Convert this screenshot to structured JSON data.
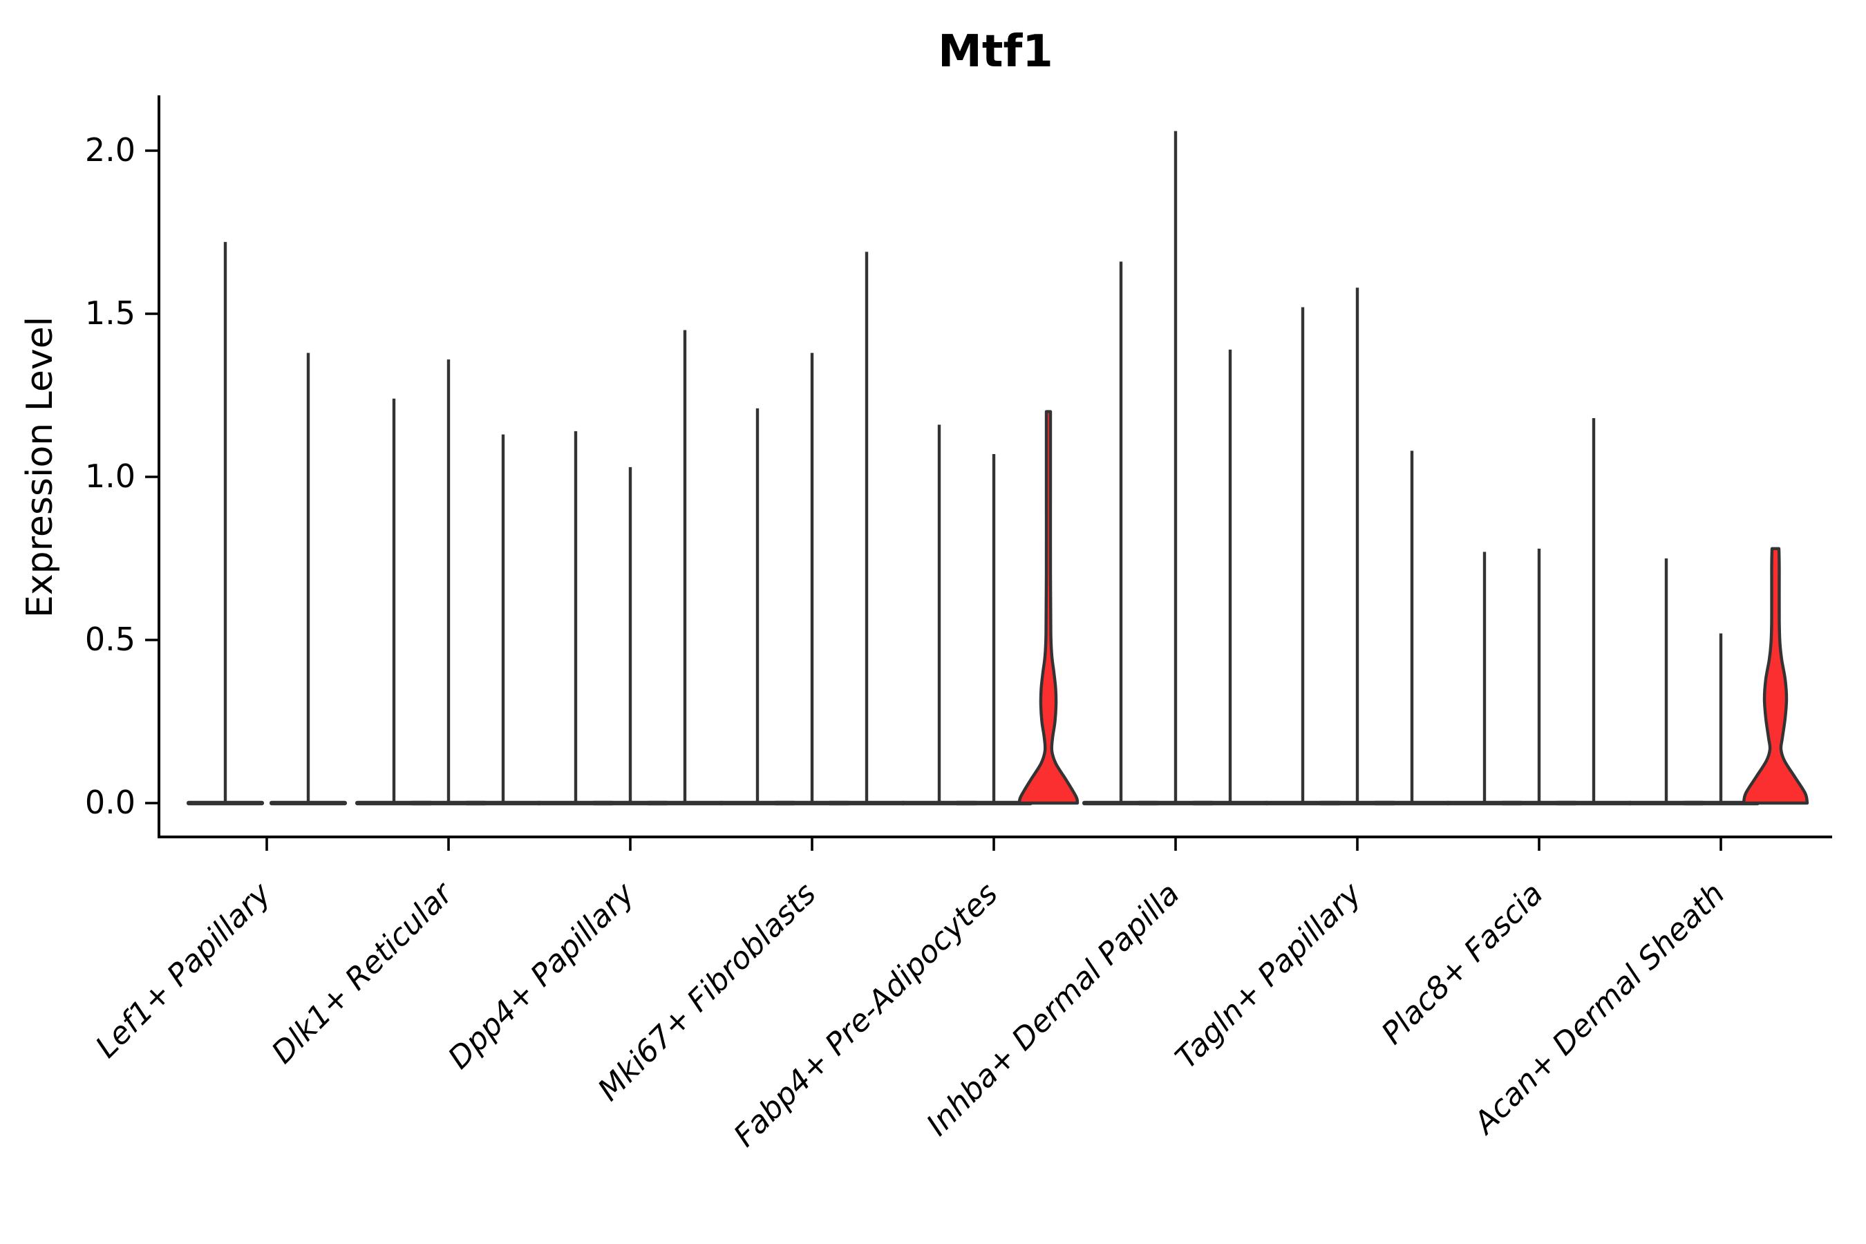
{
  "chart_data": {
    "type": "violin",
    "title": "Mtf1",
    "ylabel": "Expression Level",
    "xlabel": "",
    "ylim": [
      -0.05,
      2.16
    ],
    "yticks": [
      0.0,
      0.5,
      1.0,
      1.5,
      2.0
    ],
    "ytick_labels": [
      "0.0",
      "0.5",
      "1.0",
      "1.5",
      "2.0"
    ],
    "grid": false,
    "legend": "none",
    "colors": {
      "violin_line": "#333333",
      "highlight_fill": "#FB2F2F",
      "axis": "#000000",
      "text": "#000000"
    },
    "note": "27 violins in 9 groups of 3 (first group shows 2); most collapse to a baseline blob with a thin tail spike; two red filled violins (3rd of Fabp4+ Pre-Adipocytes, 3rd of Acan+ Dermal Sheath)",
    "groups": [
      {
        "label": "Lef1+ Papillary",
        "violins": [
          {
            "style": "spike",
            "max": 1.72
          },
          {
            "style": "spike",
            "max": 1.38
          }
        ]
      },
      {
        "label": "Dlk1+ Reticular",
        "violins": [
          {
            "style": "spike",
            "max": 1.24
          },
          {
            "style": "spike",
            "max": 1.36
          },
          {
            "style": "spike",
            "max": 1.13
          }
        ]
      },
      {
        "label": "Dpp4+ Papillary",
        "violins": [
          {
            "style": "spike",
            "max": 1.14
          },
          {
            "style": "spike",
            "max": 1.03
          },
          {
            "style": "spike",
            "max": 1.45
          }
        ]
      },
      {
        "label": "Mki67+ Fibroblasts",
        "violins": [
          {
            "style": "spike",
            "max": 1.21
          },
          {
            "style": "spike",
            "max": 1.38
          },
          {
            "style": "spike",
            "max": 1.69
          }
        ]
      },
      {
        "label": "Fabp4+ Pre-Adipocytes",
        "violins": [
          {
            "style": "spike",
            "max": 1.16
          },
          {
            "style": "spike",
            "max": 1.07
          },
          {
            "style": "filled",
            "max": 1.2,
            "bulge_center": 0.33,
            "profile": [
              [
                0,
                42
              ],
              [
                0.02,
                40
              ],
              [
                0.07,
                26
              ],
              [
                0.12,
                11
              ],
              [
                0.16,
                5
              ],
              [
                0.2,
                6
              ],
              [
                0.25,
                9.5
              ],
              [
                0.3,
                11
              ],
              [
                0.35,
                10.5
              ],
              [
                0.4,
                8
              ],
              [
                0.45,
                5
              ],
              [
                0.52,
                3.5
              ],
              [
                0.7,
                3
              ],
              [
                1.0,
                3
              ],
              [
                1.2,
                3
              ]
            ]
          }
        ]
      },
      {
        "label": "Inhba+ Dermal Papilla",
        "violins": [
          {
            "style": "spike",
            "max": 1.66
          },
          {
            "style": "spike",
            "max": 2.06
          },
          {
            "style": "spike",
            "max": 1.39
          }
        ]
      },
      {
        "label": "Tagln+ Papillary",
        "violins": [
          {
            "style": "spike",
            "max": 1.52
          },
          {
            "style": "spike",
            "max": 1.58
          },
          {
            "style": "spike",
            "max": 1.08
          }
        ]
      },
      {
        "label": "Plac8+ Fascia",
        "violins": [
          {
            "style": "spike",
            "max": 0.77
          },
          {
            "style": "spike",
            "max": 0.78
          },
          {
            "style": "spike",
            "max": 1.18
          }
        ]
      },
      {
        "label": "Acan+ Dermal Sheath",
        "violins": [
          {
            "style": "spike",
            "max": 0.75
          },
          {
            "style": "spike",
            "max": 0.52
          },
          {
            "style": "filled",
            "max": 0.78,
            "bulge_center": 0.33,
            "profile": [
              [
                0,
                46
              ],
              [
                0.03,
                43
              ],
              [
                0.08,
                28
              ],
              [
                0.13,
                13
              ],
              [
                0.165,
                8
              ],
              [
                0.2,
                10
              ],
              [
                0.26,
                14
              ],
              [
                0.32,
                16
              ],
              [
                0.38,
                14
              ],
              [
                0.44,
                9
              ],
              [
                0.49,
                6.5
              ],
              [
                0.56,
                5.5
              ],
              [
                0.72,
                5.5
              ],
              [
                0.78,
                5
              ]
            ]
          }
        ]
      }
    ]
  }
}
